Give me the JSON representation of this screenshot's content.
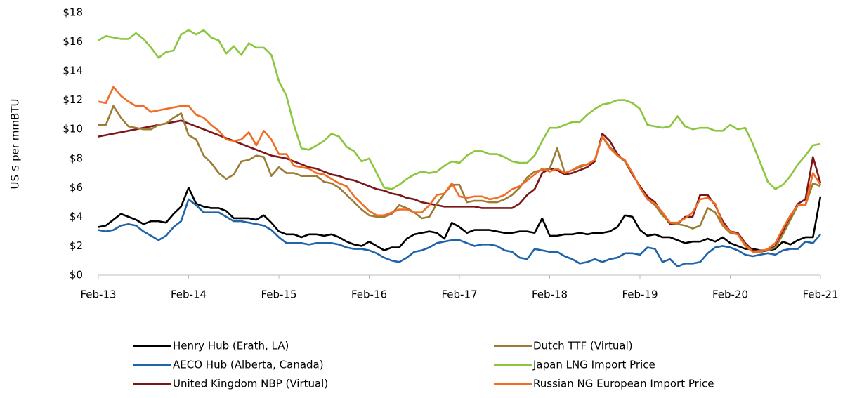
{
  "chart_data": {
    "type": "line",
    "ylabel": "US $ per mmBTU",
    "categories": [
      "Feb-13",
      null,
      null,
      null,
      null,
      null,
      null,
      null,
      null,
      null,
      null,
      null,
      "Feb-14",
      null,
      null,
      null,
      null,
      null,
      null,
      null,
      null,
      null,
      null,
      null,
      "Feb-15",
      null,
      null,
      null,
      null,
      null,
      null,
      null,
      null,
      null,
      null,
      null,
      "Feb-16",
      null,
      null,
      null,
      null,
      null,
      null,
      null,
      null,
      null,
      null,
      null,
      "Feb-17",
      null,
      null,
      null,
      null,
      null,
      null,
      null,
      null,
      null,
      null,
      null,
      "Feb-18",
      null,
      null,
      null,
      null,
      null,
      null,
      null,
      null,
      null,
      null,
      null,
      "Feb-19",
      null,
      null,
      null,
      null,
      null,
      null,
      null,
      null,
      null,
      null,
      null,
      "Feb-20",
      null,
      null,
      null,
      null,
      null,
      null,
      null,
      null,
      null,
      null,
      null,
      "Feb-21"
    ],
    "ylim": [
      0,
      18
    ],
    "yticks": [
      {
        "value": 0,
        "label": "$0"
      },
      {
        "value": 2,
        "label": "$2"
      },
      {
        "value": 4,
        "label": "$4"
      },
      {
        "value": 6,
        "label": "$6"
      },
      {
        "value": 8,
        "label": "$8"
      },
      {
        "value": 10,
        "label": "$10"
      },
      {
        "value": 12,
        "label": "$12"
      },
      {
        "value": 14,
        "label": "$14"
      },
      {
        "value": 16,
        "label": "$16"
      },
      {
        "value": 18,
        "label": "$18"
      }
    ],
    "grid": false,
    "legend": "bottom",
    "series": [
      {
        "name": "Henry Hub (Erath, LA)",
        "color": "#000000",
        "values": [
          3.3,
          3.4,
          3.8,
          4.2,
          4.0,
          3.8,
          3.5,
          3.7,
          3.7,
          3.6,
          4.2,
          4.7,
          6.0,
          4.9,
          4.7,
          4.6,
          4.6,
          4.4,
          3.9,
          3.9,
          3.9,
          3.8,
          4.1,
          3.6,
          3.0,
          2.8,
          2.8,
          2.6,
          2.8,
          2.8,
          2.7,
          2.8,
          2.6,
          2.3,
          2.1,
          2.0,
          2.3,
          2.0,
          1.7,
          1.9,
          1.9,
          2.5,
          2.8,
          2.9,
          3.0,
          2.9,
          2.5,
          3.6,
          3.3,
          2.9,
          3.1,
          3.1,
          3.1,
          3.0,
          2.9,
          2.9,
          3.0,
          3.0,
          2.9,
          3.9,
          2.7,
          2.7,
          2.8,
          2.8,
          2.9,
          2.8,
          2.9,
          2.9,
          3.0,
          3.3,
          4.1,
          4.0,
          3.1,
          2.7,
          2.8,
          2.6,
          2.6,
          2.4,
          2.2,
          2.3,
          2.3,
          2.5,
          2.3,
          2.6,
          2.2,
          2.0,
          1.8,
          1.8,
          1.7,
          1.7,
          1.8,
          2.3,
          2.1,
          2.4,
          2.6,
          2.6,
          5.4
        ]
      },
      {
        "name": "AECO Hub (Alberta, Canada)",
        "color": "#1f63a8",
        "values": [
          3.1,
          3.0,
          3.1,
          3.4,
          3.5,
          3.4,
          3.0,
          2.7,
          2.4,
          2.7,
          3.3,
          3.7,
          5.2,
          4.8,
          4.3,
          4.3,
          4.3,
          4.0,
          3.7,
          3.7,
          3.6,
          3.5,
          3.4,
          3.1,
          2.6,
          2.2,
          2.2,
          2.2,
          2.1,
          2.2,
          2.2,
          2.2,
          2.1,
          1.9,
          1.8,
          1.8,
          1.7,
          1.5,
          1.2,
          1.0,
          0.9,
          1.2,
          1.6,
          1.7,
          1.9,
          2.2,
          2.3,
          2.4,
          2.4,
          2.2,
          2.0,
          2.1,
          2.1,
          2.0,
          1.7,
          1.6,
          1.2,
          1.1,
          1.8,
          1.7,
          1.6,
          1.6,
          1.3,
          1.1,
          0.8,
          0.9,
          1.1,
          0.9,
          1.1,
          1.2,
          1.5,
          1.5,
          1.4,
          1.9,
          1.8,
          0.9,
          1.1,
          0.6,
          0.8,
          0.8,
          0.9,
          1.5,
          1.9,
          2.0,
          1.9,
          1.7,
          1.4,
          1.3,
          1.4,
          1.5,
          1.4,
          1.7,
          1.8,
          1.8,
          2.3,
          2.2,
          2.8
        ]
      },
      {
        "name": "United Kingdom NBP (Virtual)",
        "color": "#7b1518",
        "values": [
          9.5,
          9.6,
          9.7,
          9.8,
          9.9,
          10.0,
          10.1,
          10.2,
          10.3,
          10.4,
          10.5,
          10.6,
          10.4,
          10.2,
          10.0,
          9.8,
          9.6,
          9.4,
          9.2,
          9.0,
          8.8,
          8.6,
          8.4,
          8.2,
          8.1,
          8.0,
          7.8,
          7.6,
          7.4,
          7.3,
          7.1,
          6.9,
          6.8,
          6.6,
          6.5,
          6.3,
          6.1,
          5.9,
          5.8,
          5.6,
          5.5,
          5.3,
          5.2,
          5.0,
          4.9,
          4.8,
          4.7,
          4.7,
          4.7,
          4.7,
          4.7,
          4.6,
          4.6,
          4.6,
          4.6,
          4.6,
          4.9,
          5.5,
          5.9,
          7.0,
          7.3,
          7.2,
          6.9,
          7.0,
          7.2,
          7.4,
          7.8,
          9.7,
          9.2,
          8.3,
          7.8,
          6.9,
          6.1,
          5.4,
          5.0,
          4.2,
          3.5,
          3.5,
          4.0,
          4.0,
          5.5,
          5.5,
          4.8,
          3.7,
          3.0,
          2.9,
          2.2,
          1.7,
          1.6,
          1.7,
          2.0,
          3.0,
          4.0,
          4.9,
          5.2,
          8.1,
          6.3
        ]
      },
      {
        "name": "Dutch TTF (Virtual)",
        "color": "#9c7c34",
        "values": [
          10.3,
          10.3,
          11.6,
          10.8,
          10.2,
          10.1,
          10.0,
          10.0,
          10.3,
          10.4,
          10.8,
          11.1,
          9.6,
          9.3,
          8.2,
          7.7,
          7.0,
          6.6,
          6.9,
          7.8,
          7.9,
          8.2,
          8.1,
          6.8,
          7.4,
          7.0,
          7.0,
          6.8,
          6.8,
          6.8,
          6.4,
          6.3,
          6.0,
          5.5,
          5.0,
          4.5,
          4.1,
          4.0,
          4.0,
          4.2,
          4.8,
          4.6,
          4.3,
          3.9,
          4.0,
          4.9,
          5.6,
          6.2,
          6.2,
          5.0,
          5.1,
          5.1,
          5.0,
          5.0,
          5.2,
          5.5,
          6.0,
          6.7,
          7.1,
          7.2,
          7.3,
          8.7,
          7.0,
          7.2,
          7.4,
          7.6,
          7.9,
          9.5,
          8.8,
          8.2,
          7.8,
          7.0,
          6.0,
          5.2,
          4.8,
          4.1,
          3.6,
          3.5,
          3.4,
          3.2,
          3.4,
          4.6,
          4.3,
          3.4,
          2.9,
          2.8,
          2.1,
          1.6,
          1.7,
          1.7,
          1.9,
          2.8,
          3.8,
          4.8,
          4.8,
          6.3,
          6.1
        ]
      },
      {
        "name": "Japan LNG Import Price",
        "color": "#8cc63f",
        "values": [
          16.1,
          16.4,
          16.3,
          16.2,
          16.2,
          16.6,
          16.2,
          15.6,
          14.9,
          15.3,
          15.4,
          16.5,
          16.8,
          16.5,
          16.8,
          16.3,
          16.1,
          15.2,
          15.7,
          15.1,
          15.9,
          15.6,
          15.6,
          15.1,
          13.3,
          12.3,
          10.3,
          8.7,
          8.6,
          8.9,
          9.2,
          9.7,
          9.5,
          8.8,
          8.5,
          7.8,
          8.0,
          7.0,
          6.0,
          5.9,
          6.2,
          6.6,
          6.9,
          7.1,
          7.0,
          7.1,
          7.5,
          7.8,
          7.7,
          8.2,
          8.5,
          8.5,
          8.3,
          8.3,
          8.1,
          7.8,
          7.7,
          7.7,
          8.2,
          9.2,
          10.1,
          10.1,
          10.3,
          10.5,
          10.5,
          11.0,
          11.4,
          11.7,
          11.8,
          12.0,
          12.0,
          11.8,
          11.4,
          10.3,
          10.2,
          10.1,
          10.2,
          10.9,
          10.2,
          10.0,
          10.1,
          10.1,
          9.9,
          9.9,
          10.3,
          10.0,
          10.1,
          9.0,
          7.7,
          6.4,
          5.9,
          6.2,
          6.8,
          7.6,
          8.2,
          8.9,
          9.0
        ]
      },
      {
        "name": "Russian NG European Import Price",
        "color": "#f26c23",
        "values": [
          11.9,
          11.8,
          12.9,
          12.3,
          11.9,
          11.6,
          11.6,
          11.2,
          11.3,
          11.4,
          11.5,
          11.6,
          11.6,
          11.0,
          10.8,
          10.3,
          9.9,
          9.3,
          9.2,
          9.3,
          9.8,
          8.9,
          9.9,
          9.3,
          8.3,
          8.3,
          7.5,
          7.4,
          7.3,
          7.0,
          6.9,
          6.6,
          6.3,
          6.1,
          5.4,
          4.9,
          4.4,
          4.1,
          4.1,
          4.3,
          4.5,
          4.5,
          4.3,
          4.3,
          4.8,
          5.5,
          5.6,
          6.3,
          5.4,
          5.3,
          5.4,
          5.4,
          5.2,
          5.3,
          5.5,
          5.9,
          6.1,
          6.5,
          6.9,
          7.3,
          7.1,
          7.3,
          7.0,
          7.2,
          7.5,
          7.6,
          7.9,
          9.5,
          8.7,
          8.2,
          7.9,
          7.0,
          6.0,
          5.2,
          4.9,
          4.3,
          3.6,
          3.6,
          3.9,
          4.3,
          5.2,
          5.3,
          4.9,
          3.5,
          3.0,
          2.8,
          2.0,
          1.6,
          1.6,
          1.8,
          2.2,
          3.2,
          4.1,
          4.8,
          4.8,
          7.0,
          6.2
        ]
      }
    ]
  }
}
